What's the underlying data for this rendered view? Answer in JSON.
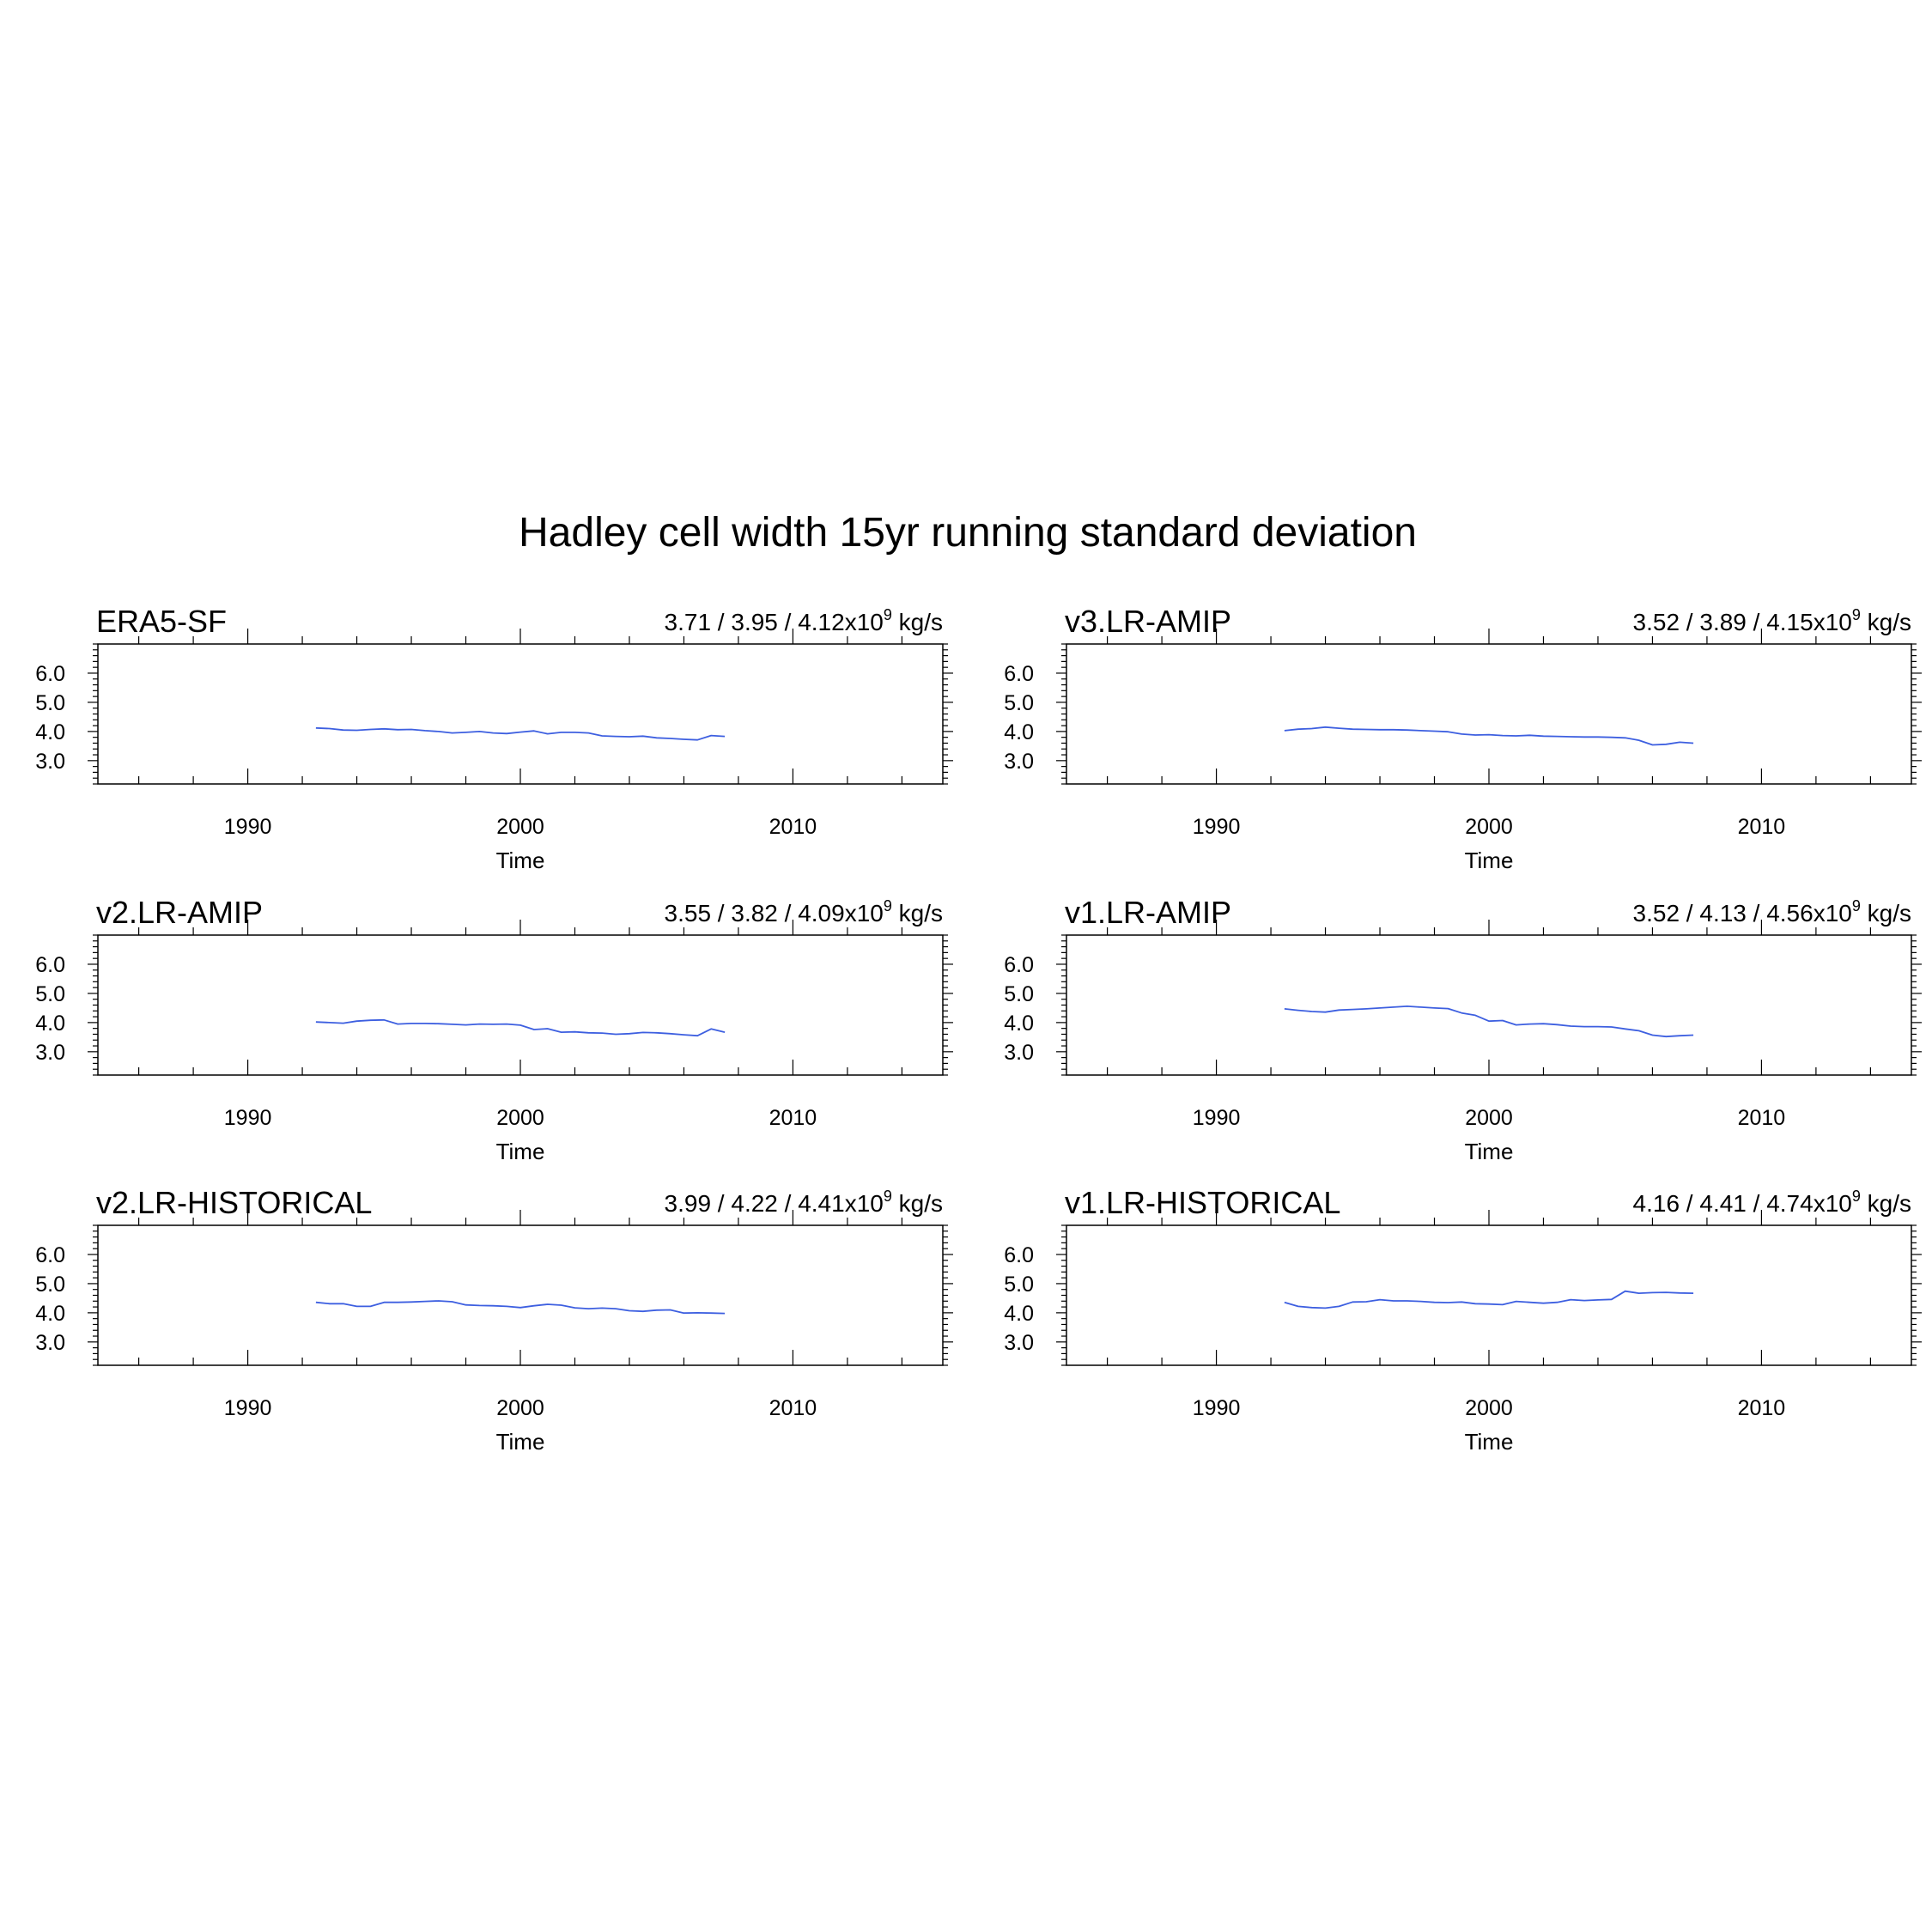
{
  "title": "Hadley cell width 15yr running standard deviation",
  "colors": {
    "series": "#3d5fe0",
    "axis": "#000000",
    "background": "#ffffff"
  },
  "chart_data": [
    {
      "type": "line",
      "name": "ERA5-SF",
      "stats": "3.71 / 3.95 / 4.12x10",
      "stats_exponent": "9",
      "stats_unit": " kg/s",
      "xlabel": "Time",
      "ylabel": "",
      "xlim": [
        1984.5,
        2015.5
      ],
      "ylim": [
        2.2,
        7.0
      ],
      "xticks": [
        1990,
        2000,
        2010
      ],
      "xtick_labels": [
        "1990",
        "2000",
        "2010"
      ],
      "yticks": [
        3.0,
        4.0,
        5.0,
        6.0
      ],
      "ytick_labels": [
        "3.0",
        "4.0",
        "5.0",
        "6.0"
      ],
      "x": [
        1992.5,
        1993,
        1993.5,
        1994,
        1994.5,
        1995,
        1995.5,
        1996,
        1996.5,
        1997,
        1997.5,
        1998,
        1998.5,
        1999,
        1999.5,
        2000,
        2000.5,
        2001,
        2001.5,
        2002,
        2002.5,
        2003,
        2003.5,
        2004,
        2004.5,
        2005,
        2005.5,
        2006,
        2006.5,
        2007,
        2007.5
      ],
      "y": [
        4.12,
        4.1,
        4.05,
        4.04,
        4.07,
        4.09,
        4.06,
        4.07,
        4.03,
        4.0,
        3.95,
        3.97,
        4.0,
        3.95,
        3.93,
        3.98,
        4.02,
        3.92,
        3.97,
        3.97,
        3.95,
        3.85,
        3.83,
        3.82,
        3.84,
        3.78,
        3.76,
        3.73,
        3.71,
        3.86,
        3.83
      ]
    },
    {
      "type": "line",
      "name": "v3.LR-AMIP",
      "stats": "3.52 / 3.89 / 4.15x10",
      "stats_exponent": "9",
      "stats_unit": " kg/s",
      "xlabel": "Time",
      "ylabel": "",
      "xlim": [
        1984.5,
        2015.5
      ],
      "ylim": [
        2.2,
        7.0
      ],
      "xticks": [
        1990,
        2000,
        2010
      ],
      "xtick_labels": [
        "1990",
        "2000",
        "2010"
      ],
      "yticks": [
        3.0,
        4.0,
        5.0,
        6.0
      ],
      "ytick_labels": [
        "3.0",
        "4.0",
        "5.0",
        "6.0"
      ],
      "x": [
        1992.5,
        1993,
        1993.5,
        1994,
        1994.5,
        1995,
        1995.5,
        1996,
        1996.5,
        1997,
        1997.5,
        1998,
        1998.5,
        1999,
        1999.5,
        2000,
        2000.5,
        2001,
        2001.5,
        2002,
        2002.5,
        2003,
        2003.5,
        2004,
        2004.5,
        2005,
        2005.5,
        2006,
        2006.5,
        2007,
        2007.5
      ],
      "y": [
        4.03,
        4.08,
        4.1,
        4.15,
        4.11,
        4.08,
        4.07,
        4.06,
        4.06,
        4.05,
        4.03,
        4.01,
        3.99,
        3.91,
        3.88,
        3.89,
        3.86,
        3.85,
        3.87,
        3.84,
        3.83,
        3.82,
        3.81,
        3.81,
        3.8,
        3.78,
        3.7,
        3.54,
        3.56,
        3.63,
        3.6
      ]
    },
    {
      "type": "line",
      "name": "v2.LR-AMIP",
      "stats": "3.55 / 3.82 / 4.09x10",
      "stats_exponent": "9",
      "stats_unit": " kg/s",
      "xlabel": "Time",
      "ylabel": "",
      "xlim": [
        1984.5,
        2015.5
      ],
      "ylim": [
        2.2,
        7.0
      ],
      "xticks": [
        1990,
        2000,
        2010
      ],
      "xtick_labels": [
        "1990",
        "2000",
        "2010"
      ],
      "yticks": [
        3.0,
        4.0,
        5.0,
        6.0
      ],
      "ytick_labels": [
        "3.0",
        "4.0",
        "5.0",
        "6.0"
      ],
      "x": [
        1992.5,
        1993,
        1993.5,
        1994,
        1994.5,
        1995,
        1995.5,
        1996,
        1996.5,
        1997,
        1997.5,
        1998,
        1998.5,
        1999,
        1999.5,
        2000,
        2000.5,
        2001,
        2001.5,
        2002,
        2002.5,
        2003,
        2003.5,
        2004,
        2004.5,
        2005,
        2005.5,
        2006,
        2006.5,
        2007,
        2007.5
      ],
      "y": [
        4.02,
        4.0,
        3.98,
        4.05,
        4.08,
        4.09,
        3.95,
        3.97,
        3.97,
        3.96,
        3.94,
        3.92,
        3.95,
        3.94,
        3.95,
        3.91,
        3.76,
        3.79,
        3.67,
        3.68,
        3.65,
        3.64,
        3.6,
        3.62,
        3.66,
        3.65,
        3.62,
        3.58,
        3.55,
        3.78,
        3.67
      ]
    },
    {
      "type": "line",
      "name": "v1.LR-AMIP",
      "stats": "3.52 / 4.13 / 4.56x10",
      "stats_exponent": "9",
      "stats_unit": " kg/s",
      "xlabel": "Time",
      "ylabel": "",
      "xlim": [
        1984.5,
        2015.5
      ],
      "ylim": [
        2.2,
        7.0
      ],
      "xticks": [
        1990,
        2000,
        2010
      ],
      "xtick_labels": [
        "1990",
        "2000",
        "2010"
      ],
      "yticks": [
        3.0,
        4.0,
        5.0,
        6.0
      ],
      "ytick_labels": [
        "3.0",
        "4.0",
        "5.0",
        "6.0"
      ],
      "x": [
        1992.5,
        1993,
        1993.5,
        1994,
        1994.5,
        1995,
        1995.5,
        1996,
        1996.5,
        1997,
        1997.5,
        1998,
        1998.5,
        1999,
        1999.5,
        2000,
        2000.5,
        2001,
        2001.5,
        2002,
        2002.5,
        2003,
        2003.5,
        2004,
        2004.5,
        2005,
        2005.5,
        2006,
        2006.5,
        2007,
        2007.5
      ],
      "y": [
        4.47,
        4.42,
        4.38,
        4.36,
        4.43,
        4.45,
        4.47,
        4.5,
        4.53,
        4.56,
        4.53,
        4.5,
        4.48,
        4.33,
        4.25,
        4.05,
        4.07,
        3.92,
        3.95,
        3.96,
        3.93,
        3.88,
        3.86,
        3.86,
        3.85,
        3.78,
        3.72,
        3.57,
        3.52,
        3.55,
        3.57
      ]
    },
    {
      "type": "line",
      "name": "v2.LR-HISTORICAL",
      "stats": "3.99 / 4.22 / 4.41x10",
      "stats_exponent": "9",
      "stats_unit": " kg/s",
      "xlabel": "Time",
      "ylabel": "",
      "xlim": [
        1984.5,
        2015.5
      ],
      "ylim": [
        2.2,
        7.0
      ],
      "xticks": [
        1990,
        2000,
        2010
      ],
      "xtick_labels": [
        "1990",
        "2000",
        "2010"
      ],
      "yticks": [
        3.0,
        4.0,
        5.0,
        6.0
      ],
      "ytick_labels": [
        "3.0",
        "4.0",
        "5.0",
        "6.0"
      ],
      "x": [
        1992.5,
        1993,
        1993.5,
        1994,
        1994.5,
        1995,
        1995.5,
        1996,
        1996.5,
        1997,
        1997.5,
        1998,
        1998.5,
        1999,
        1999.5,
        2000,
        2000.5,
        2001,
        2001.5,
        2002,
        2002.5,
        2003,
        2003.5,
        2004,
        2004.5,
        2005,
        2005.5,
        2006,
        2006.5,
        2007,
        2007.5
      ],
      "y": [
        4.36,
        4.31,
        4.31,
        4.22,
        4.22,
        4.36,
        4.36,
        4.37,
        4.39,
        4.41,
        4.38,
        4.27,
        4.25,
        4.24,
        4.22,
        4.18,
        4.24,
        4.29,
        4.26,
        4.17,
        4.14,
        4.16,
        4.14,
        4.07,
        4.05,
        4.09,
        4.1,
        3.99,
        4.0,
        3.99,
        3.98
      ]
    },
    {
      "type": "line",
      "name": "v1.LR-HISTORICAL",
      "stats": "4.16 / 4.41 / 4.74x10",
      "stats_exponent": "9",
      "stats_unit": " kg/s",
      "xlabel": "Time",
      "ylabel": "",
      "xlim": [
        1984.5,
        2015.5
      ],
      "ylim": [
        2.2,
        7.0
      ],
      "xticks": [
        1990,
        2000,
        2010
      ],
      "xtick_labels": [
        "1990",
        "2000",
        "2010"
      ],
      "yticks": [
        3.0,
        4.0,
        5.0,
        6.0
      ],
      "ytick_labels": [
        "3.0",
        "4.0",
        "5.0",
        "6.0"
      ],
      "x": [
        1992.5,
        1993,
        1993.5,
        1994,
        1994.5,
        1995,
        1995.5,
        1996,
        1996.5,
        1997,
        1997.5,
        1998,
        1998.5,
        1999,
        1999.5,
        2000,
        2000.5,
        2001,
        2001.5,
        2002,
        2002.5,
        2003,
        2003.5,
        2004,
        2004.5,
        2005,
        2005.5,
        2006,
        2006.5,
        2007,
        2007.5
      ],
      "y": [
        4.36,
        4.22,
        4.18,
        4.16,
        4.22,
        4.37,
        4.38,
        4.45,
        4.41,
        4.41,
        4.39,
        4.36,
        4.35,
        4.37,
        4.31,
        4.3,
        4.28,
        4.39,
        4.36,
        4.33,
        4.36,
        4.45,
        4.42,
        4.44,
        4.46,
        4.74,
        4.67,
        4.69,
        4.7,
        4.68,
        4.67
      ]
    }
  ]
}
